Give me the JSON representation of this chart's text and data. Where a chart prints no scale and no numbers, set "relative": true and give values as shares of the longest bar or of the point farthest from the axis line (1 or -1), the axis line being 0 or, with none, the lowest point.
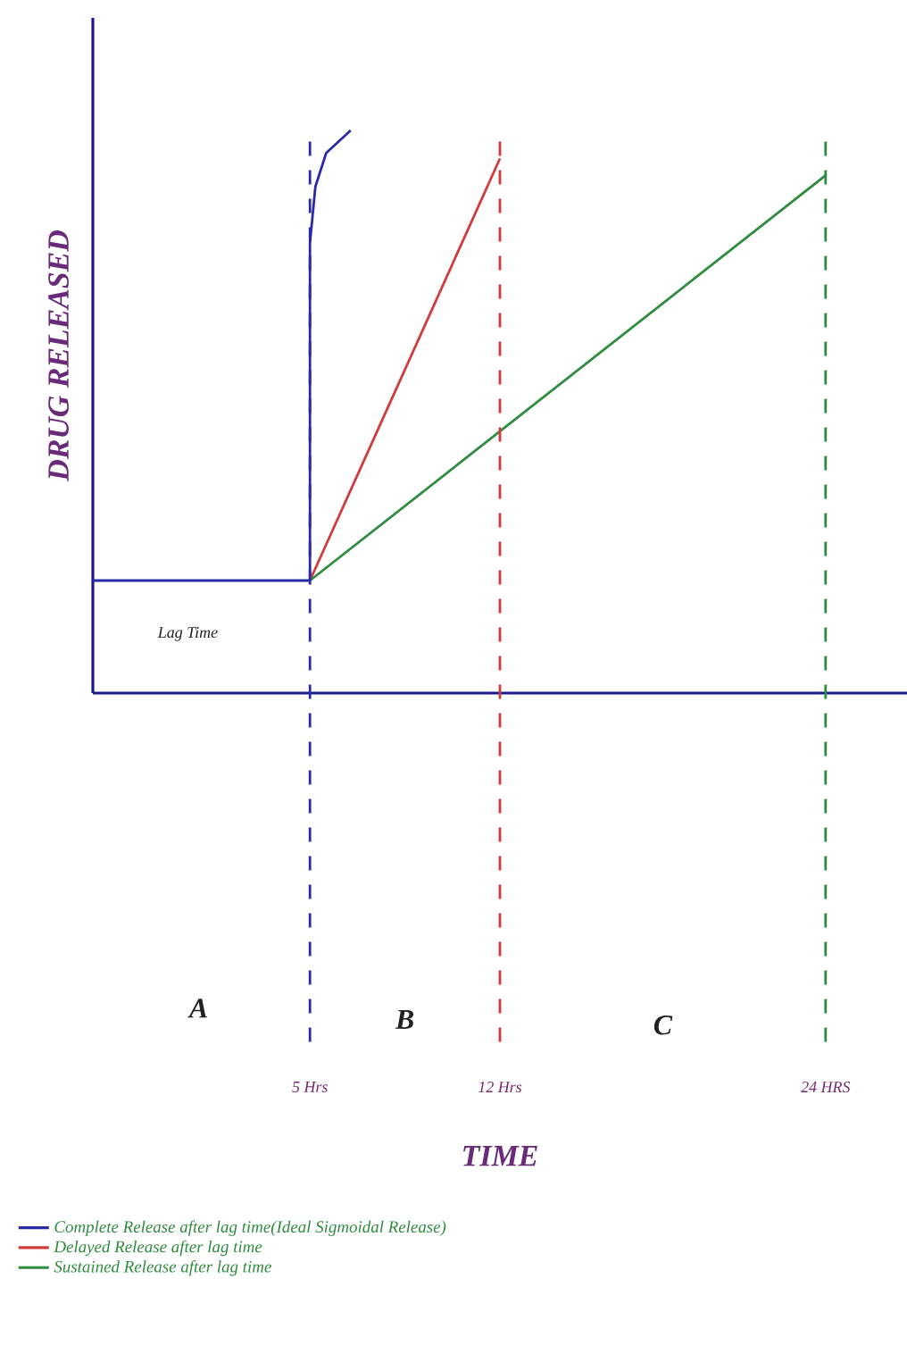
{
  "chart_data": {
    "type": "line",
    "relative": true,
    "xlabel": "TIME",
    "ylabel": "DRUG RELEASED",
    "xlim": [
      -3,
      27
    ],
    "xticks": [
      {
        "value": 5,
        "label": "5 Hrs"
      },
      {
        "value": 12,
        "label": "12 Hrs"
      },
      {
        "value": 24,
        "label": "24 HRS"
      }
    ],
    "series": [
      {
        "name": "Complete Release after lag time(Ideal Sigmoidal Release)",
        "color": "#2a2aa8",
        "x": [
          -3,
          5,
          5,
          5.2,
          5.6,
          6.5
        ],
        "values": [
          0.2,
          0.2,
          0.8,
          0.9,
          0.96,
          1.0
        ]
      },
      {
        "name": "Delayed Release after lag time",
        "color": "#d03a3a",
        "x": [
          5,
          12
        ],
        "values": [
          0.2,
          0.95
        ]
      },
      {
        "name": "Sustained Release after lag time",
        "color": "#2e8b3e",
        "x": [
          5,
          24
        ],
        "values": [
          0.2,
          0.92
        ]
      }
    ],
    "ref_lines": [
      {
        "axis": "x",
        "value": 5,
        "color": "#2a2aa8",
        "line_style": "dashed"
      },
      {
        "axis": "x",
        "value": 12,
        "color": "#d03a3a",
        "line_style": "dashed"
      },
      {
        "axis": "x",
        "value": 24,
        "color": "#2e8b3e",
        "line_style": "dashed"
      }
    ],
    "annotations": [
      "Lag Time",
      "A",
      "B",
      "C"
    ],
    "legend": "bottom",
    "marker": "none",
    "line_style": "solid",
    "grid": false
  }
}
